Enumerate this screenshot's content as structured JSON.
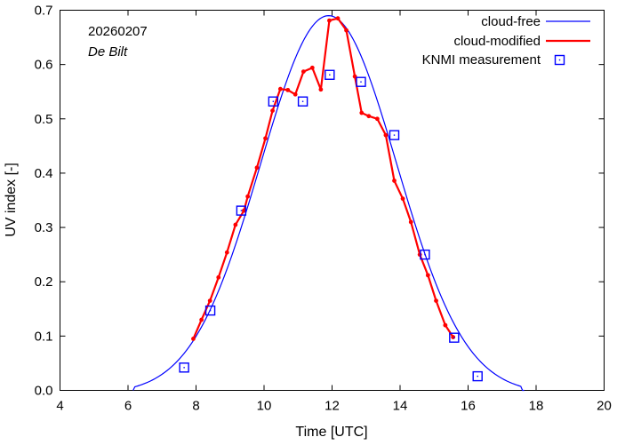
{
  "chart_data": {
    "type": "line",
    "title": "",
    "xlabel": "Time  [UTC]",
    "ylabel": "UV index  [-]",
    "xlim": [
      4,
      20
    ],
    "ylim": [
      0,
      0.7
    ],
    "xticks": [
      4,
      6,
      8,
      10,
      12,
      14,
      16,
      18,
      20
    ],
    "yticks": [
      0.0,
      0.1,
      0.2,
      0.3,
      0.4,
      0.5,
      0.6,
      0.7
    ],
    "xtick_labels": [
      "4",
      "6",
      "8",
      "10",
      "12",
      "14",
      "16",
      "18",
      "20"
    ],
    "ytick_labels": [
      "0.0",
      "0.1",
      "0.2",
      "0.3",
      "0.4",
      "0.5",
      "0.6",
      "0.7"
    ],
    "grid": false,
    "legend_position": "top-right",
    "annotations": {
      "date": "20260207",
      "location": "De Bilt"
    },
    "series": [
      {
        "name": "cloud-free",
        "kind": "line",
        "color": "#0000ff",
        "peak": 0.69,
        "center": 11.9,
        "sigma": 2.0,
        "start": 6.15,
        "end": 17.65
      },
      {
        "name": "cloud-modified",
        "kind": "line-with-markers",
        "color": "#ff0000",
        "x": [
          7.92,
          8.16,
          8.41,
          8.66,
          8.91,
          9.16,
          9.41,
          9.52,
          9.79,
          10.04,
          10.25,
          10.48,
          10.7,
          10.92,
          11.16,
          11.42,
          11.67,
          11.92,
          12.17,
          12.42,
          12.67,
          12.87,
          13.08,
          13.33,
          13.58,
          13.83,
          14.08,
          14.32,
          14.58,
          14.82,
          15.06,
          15.33,
          15.56
        ],
        "values": [
          0.095,
          0.13,
          0.165,
          0.208,
          0.254,
          0.305,
          0.331,
          0.357,
          0.41,
          0.464,
          0.515,
          0.555,
          0.553,
          0.545,
          0.587,
          0.594,
          0.554,
          0.681,
          0.685,
          0.663,
          0.578,
          0.511,
          0.505,
          0.5,
          0.47,
          0.386,
          0.353,
          0.31,
          0.25,
          0.212,
          0.165,
          0.12,
          0.098
        ]
      },
      {
        "name": "KNMI measurement",
        "kind": "markers",
        "color": "#0000ff",
        "x": [
          7.65,
          8.42,
          9.33,
          10.27,
          11.14,
          11.93,
          12.85,
          13.83,
          14.73,
          15.59,
          16.28
        ],
        "values": [
          0.042,
          0.147,
          0.331,
          0.532,
          0.532,
          0.581,
          0.568,
          0.47,
          0.25,
          0.097,
          0.026
        ]
      }
    ]
  }
}
